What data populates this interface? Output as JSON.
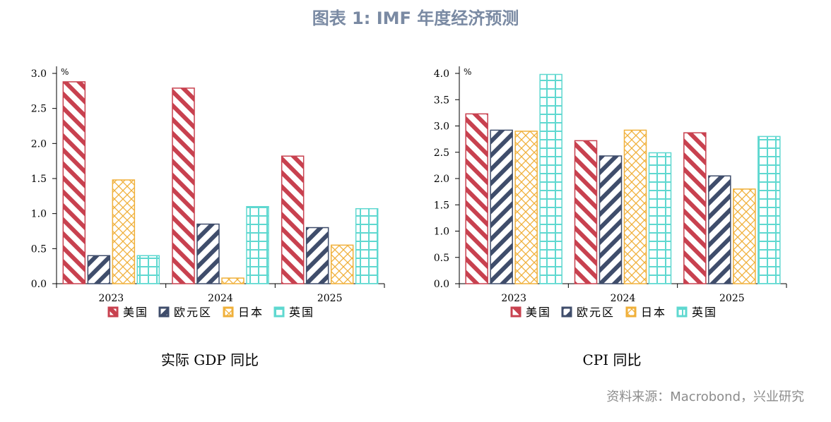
{
  "page": {
    "title": "图表 1: IMF 年度经济预测",
    "source": "资料来源：Macrobond，兴业研究"
  },
  "colors": {
    "美国": "#c8414f",
    "欧元区": "#3f4d6b",
    "日本": "#f0b03a",
    "英国": "#5fd8d0"
  },
  "chart_data": [
    {
      "type": "bar",
      "title": "实际 GDP 同比",
      "unit": "%",
      "categories": [
        "2023",
        "2024",
        "2025"
      ],
      "ylim": [
        0,
        3.0
      ],
      "yticks": [
        "0.0",
        "0.5",
        "1.0",
        "1.5",
        "2.0",
        "2.5",
        "3.0"
      ],
      "legend_position": "bottom",
      "series": [
        {
          "name": "美国",
          "values": [
            2.88,
            2.79,
            1.82
          ]
        },
        {
          "name": "欧元区",
          "values": [
            0.4,
            0.85,
            0.8
          ]
        },
        {
          "name": "日本",
          "values": [
            1.48,
            0.08,
            0.55
          ]
        },
        {
          "name": "英国",
          "values": [
            0.4,
            1.1,
            1.07
          ]
        }
      ]
    },
    {
      "type": "bar",
      "title": "CPI 同比",
      "unit": "%",
      "categories": [
        "2023",
        "2024",
        "2025"
      ],
      "ylim": [
        0,
        4.0
      ],
      "yticks": [
        "0.0",
        "0.5",
        "1.0",
        "1.5",
        "2.0",
        "2.5",
        "3.0",
        "3.5",
        "4.0"
      ],
      "legend_position": "bottom",
      "series": [
        {
          "name": "美国",
          "values": [
            3.23,
            2.72,
            2.87
          ]
        },
        {
          "name": "欧元区",
          "values": [
            2.92,
            2.43,
            2.05
          ]
        },
        {
          "name": "日本",
          "values": [
            2.9,
            2.92,
            1.8
          ]
        },
        {
          "name": "英国",
          "values": [
            3.98,
            2.49,
            2.8
          ]
        }
      ]
    }
  ]
}
